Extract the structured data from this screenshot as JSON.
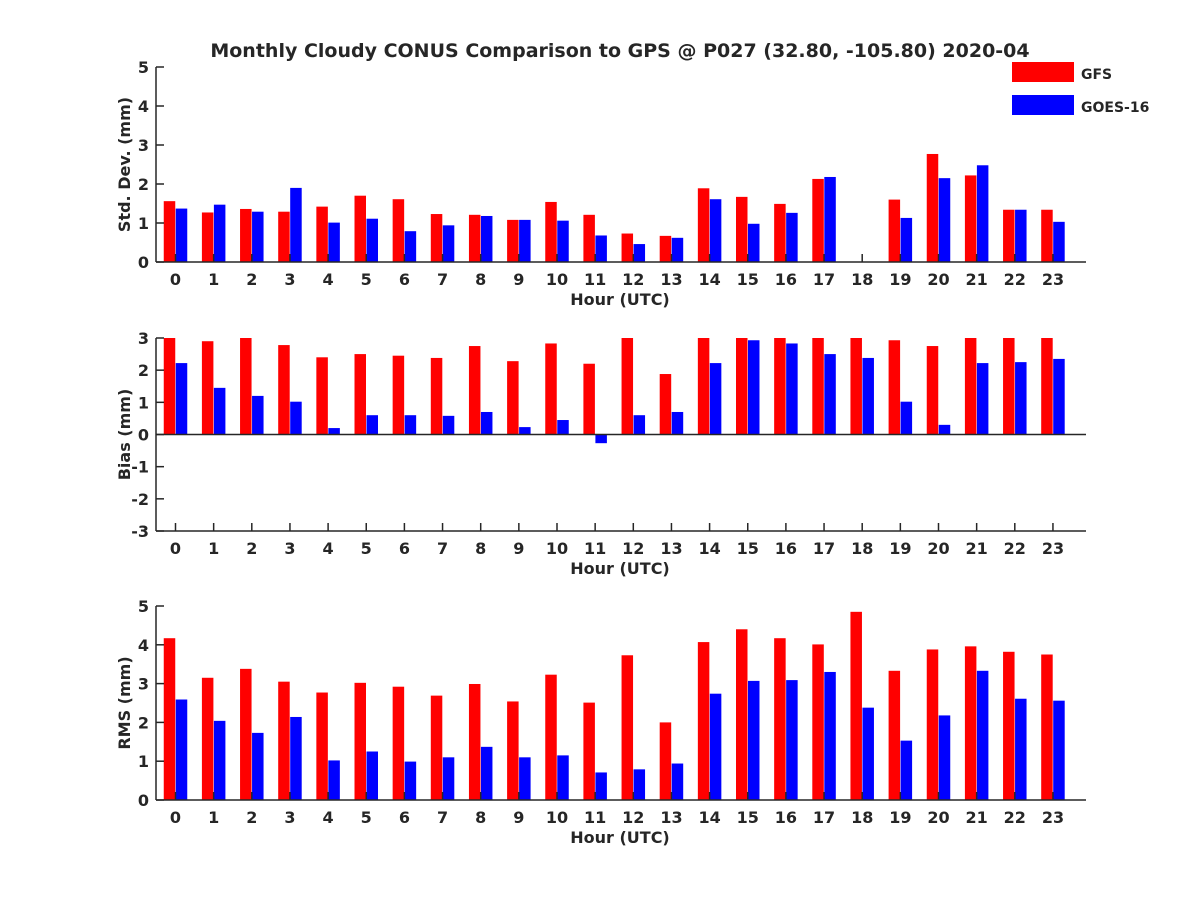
{
  "title": "Monthly Cloudy CONUS Comparison to GPS @ P027 (32.80, -105.80) 2020-04",
  "legend": {
    "position": "top-right",
    "items": [
      {
        "name": "GFS",
        "color": "#ff0000"
      },
      {
        "name": "GOES-16",
        "color": "#0000ff"
      }
    ]
  },
  "colors": {
    "gfs": "#ff0000",
    "goes": "#0000ff",
    "axis": "#262626"
  },
  "chart_data": [
    {
      "type": "bar",
      "title": "Monthly Cloudy CONUS Comparison to GPS @ P027 (32.80, -105.80) 2020-04",
      "xlabel": "Hour (UTC)",
      "ylabel": "Std. Dev. (mm)",
      "ylim": [
        0,
        5
      ],
      "yticks": [
        0,
        1,
        2,
        3,
        4,
        5
      ],
      "categories": [
        "0",
        "1",
        "2",
        "3",
        "4",
        "5",
        "6",
        "7",
        "8",
        "9",
        "10",
        "11",
        "12",
        "13",
        "14",
        "15",
        "16",
        "17",
        "18",
        "19",
        "20",
        "21",
        "22",
        "23"
      ],
      "series": [
        {
          "name": "GFS",
          "values": [
            1.56,
            1.27,
            1.36,
            1.29,
            1.42,
            1.7,
            1.61,
            1.23,
            1.21,
            1.08,
            1.54,
            1.21,
            0.73,
            0.67,
            1.89,
            1.67,
            1.49,
            2.13,
            0,
            1.6,
            2.77,
            2.22,
            1.34,
            1.34
          ]
        },
        {
          "name": "GOES-16",
          "values": [
            1.37,
            1.47,
            1.29,
            1.9,
            1.01,
            1.11,
            0.79,
            0.94,
            1.18,
            1.08,
            1.06,
            0.68,
            0.46,
            0.62,
            1.61,
            0.98,
            1.26,
            2.18,
            0,
            1.13,
            2.15,
            2.48,
            1.34,
            1.03
          ]
        }
      ]
    },
    {
      "type": "bar",
      "xlabel": "Hour (UTC)",
      "ylabel": "Bias (mm)",
      "ylim": [
        -3,
        3
      ],
      "yticks": [
        -3,
        -2,
        -1,
        0,
        1,
        2,
        3
      ],
      "categories": [
        "0",
        "1",
        "2",
        "3",
        "4",
        "5",
        "6",
        "7",
        "8",
        "9",
        "10",
        "11",
        "12",
        "13",
        "14",
        "15",
        "16",
        "17",
        "18",
        "19",
        "20",
        "21",
        "22",
        "23"
      ],
      "series": [
        {
          "name": "GFS",
          "values": [
            3.0,
            2.9,
            3.0,
            2.78,
            2.4,
            2.5,
            2.45,
            2.38,
            2.75,
            2.28,
            2.83,
            2.2,
            3.0,
            1.88,
            3.0,
            3.0,
            3.0,
            3.0,
            3.0,
            2.93,
            2.75,
            3.0,
            3.0,
            3.0
          ]
        },
        {
          "name": "GOES-16",
          "values": [
            2.22,
            1.45,
            1.2,
            1.02,
            0.2,
            0.6,
            0.6,
            0.58,
            0.7,
            0.23,
            0.45,
            -0.27,
            0.6,
            0.7,
            2.22,
            2.93,
            2.83,
            2.5,
            2.38,
            1.02,
            0.3,
            2.22,
            2.25,
            2.35
          ]
        }
      ]
    },
    {
      "type": "bar",
      "xlabel": "Hour (UTC)",
      "ylabel": "RMS (mm)",
      "ylim": [
        0,
        5
      ],
      "yticks": [
        0,
        1,
        2,
        3,
        4,
        5
      ],
      "categories": [
        "0",
        "1",
        "2",
        "3",
        "4",
        "5",
        "6",
        "7",
        "8",
        "9",
        "10",
        "11",
        "12",
        "13",
        "14",
        "15",
        "16",
        "17",
        "18",
        "19",
        "20",
        "21",
        "22",
        "23"
      ],
      "series": [
        {
          "name": "GFS",
          "values": [
            4.17,
            3.15,
            3.38,
            3.05,
            2.77,
            3.02,
            2.92,
            2.69,
            2.99,
            2.54,
            3.23,
            2.51,
            3.73,
            2.0,
            4.07,
            4.4,
            4.17,
            4.01,
            4.85,
            3.33,
            3.88,
            3.96,
            3.82,
            3.75
          ]
        },
        {
          "name": "GOES-16",
          "values": [
            2.59,
            2.04,
            1.73,
            2.14,
            1.02,
            1.25,
            0.99,
            1.1,
            1.37,
            1.1,
            1.15,
            0.71,
            0.79,
            0.94,
            2.74,
            3.07,
            3.09,
            3.3,
            2.38,
            1.53,
            2.18,
            3.33,
            2.61,
            2.56
          ]
        }
      ]
    }
  ]
}
